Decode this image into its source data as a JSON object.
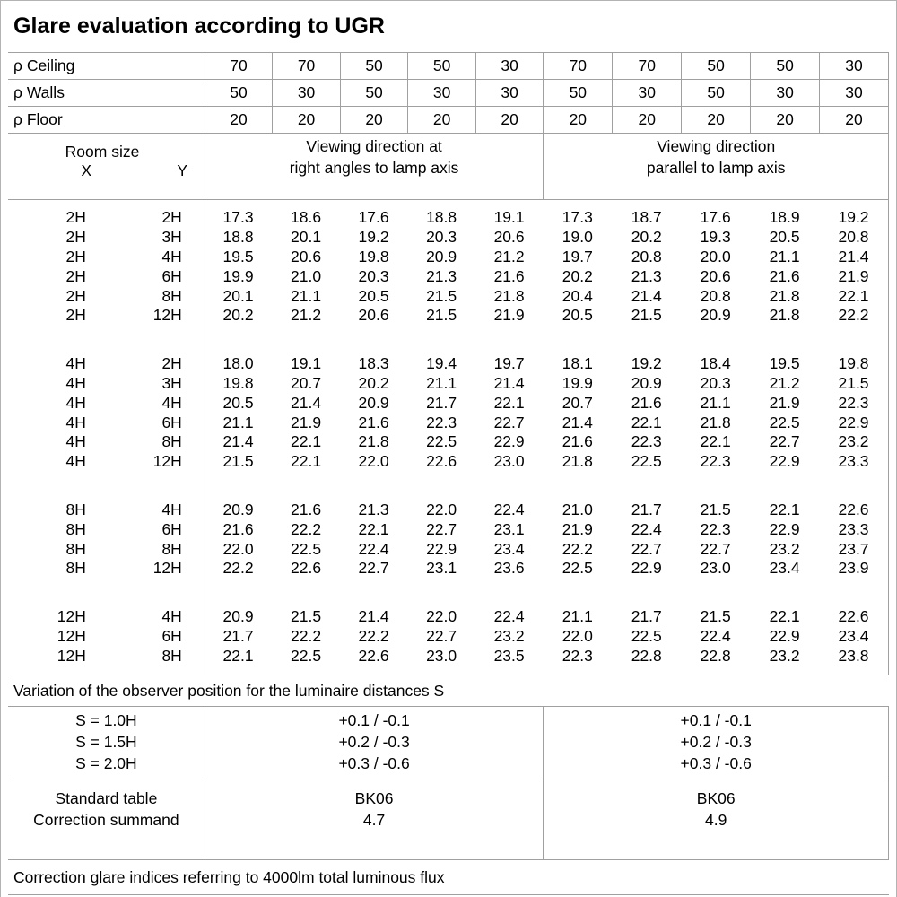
{
  "title": "Glare evaluation according to UGR",
  "colors": {
    "background": "#ffffff",
    "text": "#000000",
    "grid_line": "#a0a0a0"
  },
  "reflectance_rows": [
    {
      "label": "ρ Ceiling",
      "values": [
        "70",
        "70",
        "50",
        "50",
        "30",
        "70",
        "70",
        "50",
        "50",
        "30"
      ]
    },
    {
      "label": "ρ Walls",
      "values": [
        "50",
        "30",
        "50",
        "30",
        "30",
        "50",
        "30",
        "50",
        "30",
        "30"
      ]
    },
    {
      "label": "ρ Floor",
      "values": [
        "20",
        "20",
        "20",
        "20",
        "20",
        "20",
        "20",
        "20",
        "20",
        "20"
      ]
    }
  ],
  "header": {
    "room_size_label": "Room size",
    "x_label": "X",
    "y_label": "Y",
    "right_angles_line1": "Viewing direction at",
    "right_angles_line2": "right angles to lamp axis",
    "parallel_line1": "Viewing direction",
    "parallel_line2": "parallel to lamp axis"
  },
  "groups": [
    {
      "rows": [
        {
          "x": "2H",
          "y": "2H",
          "right_angles": [
            "17.3",
            "18.6",
            "17.6",
            "18.8",
            "19.1"
          ],
          "parallel": [
            "17.3",
            "18.7",
            "17.6",
            "18.9",
            "19.2"
          ]
        },
        {
          "x": "2H",
          "y": "3H",
          "right_angles": [
            "18.8",
            "20.1",
            "19.2",
            "20.3",
            "20.6"
          ],
          "parallel": [
            "19.0",
            "20.2",
            "19.3",
            "20.5",
            "20.8"
          ]
        },
        {
          "x": "2H",
          "y": "4H",
          "right_angles": [
            "19.5",
            "20.6",
            "19.8",
            "20.9",
            "21.2"
          ],
          "parallel": [
            "19.7",
            "20.8",
            "20.0",
            "21.1",
            "21.4"
          ]
        },
        {
          "x": "2H",
          "y": "6H",
          "right_angles": [
            "19.9",
            "21.0",
            "20.3",
            "21.3",
            "21.6"
          ],
          "parallel": [
            "20.2",
            "21.3",
            "20.6",
            "21.6",
            "21.9"
          ]
        },
        {
          "x": "2H",
          "y": "8H",
          "right_angles": [
            "20.1",
            "21.1",
            "20.5",
            "21.5",
            "21.8"
          ],
          "parallel": [
            "20.4",
            "21.4",
            "20.8",
            "21.8",
            "22.1"
          ]
        },
        {
          "x": "2H",
          "y": "12H",
          "right_angles": [
            "20.2",
            "21.2",
            "20.6",
            "21.5",
            "21.9"
          ],
          "parallel": [
            "20.5",
            "21.5",
            "20.9",
            "21.8",
            "22.2"
          ]
        }
      ]
    },
    {
      "rows": [
        {
          "x": "4H",
          "y": "2H",
          "right_angles": [
            "18.0",
            "19.1",
            "18.3",
            "19.4",
            "19.7"
          ],
          "parallel": [
            "18.1",
            "19.2",
            "18.4",
            "19.5",
            "19.8"
          ]
        },
        {
          "x": "4H",
          "y": "3H",
          "right_angles": [
            "19.8",
            "20.7",
            "20.2",
            "21.1",
            "21.4"
          ],
          "parallel": [
            "19.9",
            "20.9",
            "20.3",
            "21.2",
            "21.5"
          ]
        },
        {
          "x": "4H",
          "y": "4H",
          "right_angles": [
            "20.5",
            "21.4",
            "20.9",
            "21.7",
            "22.1"
          ],
          "parallel": [
            "20.7",
            "21.6",
            "21.1",
            "21.9",
            "22.3"
          ]
        },
        {
          "x": "4H",
          "y": "6H",
          "right_angles": [
            "21.1",
            "21.9",
            "21.6",
            "22.3",
            "22.7"
          ],
          "parallel": [
            "21.4",
            "22.1",
            "21.8",
            "22.5",
            "22.9"
          ]
        },
        {
          "x": "4H",
          "y": "8H",
          "right_angles": [
            "21.4",
            "22.1",
            "21.8",
            "22.5",
            "22.9"
          ],
          "parallel": [
            "21.6",
            "22.3",
            "22.1",
            "22.7",
            "23.2"
          ]
        },
        {
          "x": "4H",
          "y": "12H",
          "right_angles": [
            "21.5",
            "22.1",
            "22.0",
            "22.6",
            "23.0"
          ],
          "parallel": [
            "21.8",
            "22.5",
            "22.3",
            "22.9",
            "23.3"
          ]
        }
      ]
    },
    {
      "rows": [
        {
          "x": "8H",
          "y": "4H",
          "right_angles": [
            "20.9",
            "21.6",
            "21.3",
            "22.0",
            "22.4"
          ],
          "parallel": [
            "21.0",
            "21.7",
            "21.5",
            "22.1",
            "22.6"
          ]
        },
        {
          "x": "8H",
          "y": "6H",
          "right_angles": [
            "21.6",
            "22.2",
            "22.1",
            "22.7",
            "23.1"
          ],
          "parallel": [
            "21.9",
            "22.4",
            "22.3",
            "22.9",
            "23.3"
          ]
        },
        {
          "x": "8H",
          "y": "8H",
          "right_angles": [
            "22.0",
            "22.5",
            "22.4",
            "22.9",
            "23.4"
          ],
          "parallel": [
            "22.2",
            "22.7",
            "22.7",
            "23.2",
            "23.7"
          ]
        },
        {
          "x": "8H",
          "y": "12H",
          "right_angles": [
            "22.2",
            "22.6",
            "22.7",
            "23.1",
            "23.6"
          ],
          "parallel": [
            "22.5",
            "22.9",
            "23.0",
            "23.4",
            "23.9"
          ]
        }
      ]
    },
    {
      "rows": [
        {
          "x": "12H",
          "y": "4H",
          "right_angles": [
            "20.9",
            "21.5",
            "21.4",
            "22.0",
            "22.4"
          ],
          "parallel": [
            "21.1",
            "21.7",
            "21.5",
            "22.1",
            "22.6"
          ]
        },
        {
          "x": "12H",
          "y": "6H",
          "right_angles": [
            "21.7",
            "22.2",
            "22.2",
            "22.7",
            "23.2"
          ],
          "parallel": [
            "22.0",
            "22.5",
            "22.4",
            "22.9",
            "23.4"
          ]
        },
        {
          "x": "12H",
          "y": "8H",
          "right_angles": [
            "22.1",
            "22.5",
            "22.6",
            "23.0",
            "23.5"
          ],
          "parallel": [
            "22.3",
            "22.8",
            "22.8",
            "23.2",
            "23.8"
          ]
        }
      ]
    }
  ],
  "variation_note": "Variation of the observer position for the luminaire distances S",
  "s_block": {
    "labels": [
      "S = 1.0H",
      "S = 1.5H",
      "S = 2.0H"
    ],
    "right_angles_values": [
      "+0.1 / -0.1",
      "+0.2 / -0.3",
      "+0.3 / -0.6"
    ],
    "parallel_values": [
      "+0.1 / -0.1",
      "+0.2 / -0.3",
      "+0.3 / -0.6"
    ]
  },
  "summary_block": {
    "labels": [
      "Standard table",
      "Correction summand"
    ],
    "right_angles_values": [
      "BK06",
      "4.7"
    ],
    "parallel_values": [
      "BK06",
      "4.9"
    ]
  },
  "footer_note": "Correction glare indices referring to 4000lm total luminous flux"
}
